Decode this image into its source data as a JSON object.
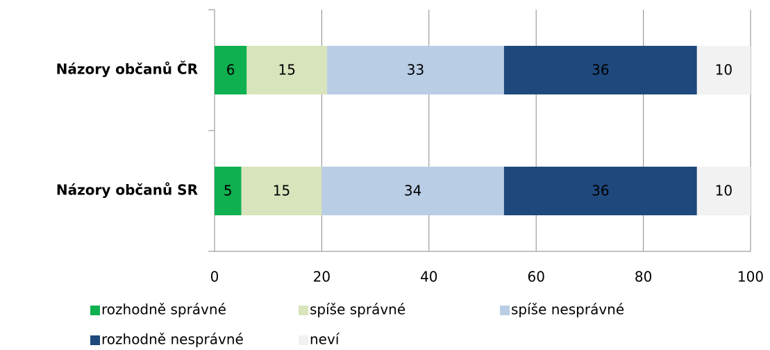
{
  "chart_data": {
    "type": "bar",
    "orientation": "horizontal",
    "stacked": true,
    "categories": [
      "Názory občanů ČR",
      "Názory občanů SR"
    ],
    "series": [
      {
        "name": "rozhodně správné",
        "color": "#0fb04f",
        "values": [
          6,
          5
        ]
      },
      {
        "name": "spíše správné",
        "color": "#d8e4bc",
        "values": [
          15,
          15
        ]
      },
      {
        "name": "spíše nesprávné",
        "color": "#b9cde5",
        "values": [
          33,
          34
        ]
      },
      {
        "name": "rozhodně nesprávné",
        "color": "#1f497d",
        "values": [
          36,
          36
        ]
      },
      {
        "name": "neví",
        "color": "#f2f2f2",
        "values": [
          10,
          10
        ]
      }
    ],
    "xlim": [
      0,
      100
    ],
    "xticks": [
      0,
      20,
      40,
      60,
      80,
      100
    ],
    "grid": true,
    "legend": "bottom"
  }
}
